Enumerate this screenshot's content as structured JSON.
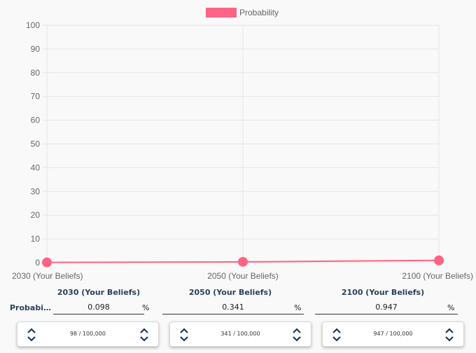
{
  "chart_data": {
    "type": "line",
    "categories": [
      "2030 (Your Beliefs)",
      "2050 (Your Beliefs)",
      "2100 (Your Beliefs)"
    ],
    "series": [
      {
        "name": "Probability",
        "values": [
          0.098,
          0.341,
          0.947
        ],
        "color": "#ff6384"
      }
    ],
    "ylim": [
      0,
      100
    ],
    "yticks": [
      0,
      10,
      20,
      30,
      40,
      50,
      60,
      70,
      80,
      90,
      100
    ],
    "grid": true,
    "legend": "top"
  },
  "table": {
    "columns": [
      "2030 (Your Beliefs)",
      "2050 (Your Beliefs)",
      "2100 (Your Beliefs)"
    ],
    "row_label": "Probabilit...",
    "values": [
      "0.098",
      "0.341",
      "0.947"
    ],
    "unit": "%"
  },
  "steppers": [
    {
      "label": "98 / 100,000",
      "icon": "up-down-chevron-icon"
    },
    {
      "label": "341 / 100,000",
      "icon": "up-down-chevron-icon"
    },
    {
      "label": "947 / 100,000",
      "icon": "up-down-chevron-icon"
    }
  ]
}
